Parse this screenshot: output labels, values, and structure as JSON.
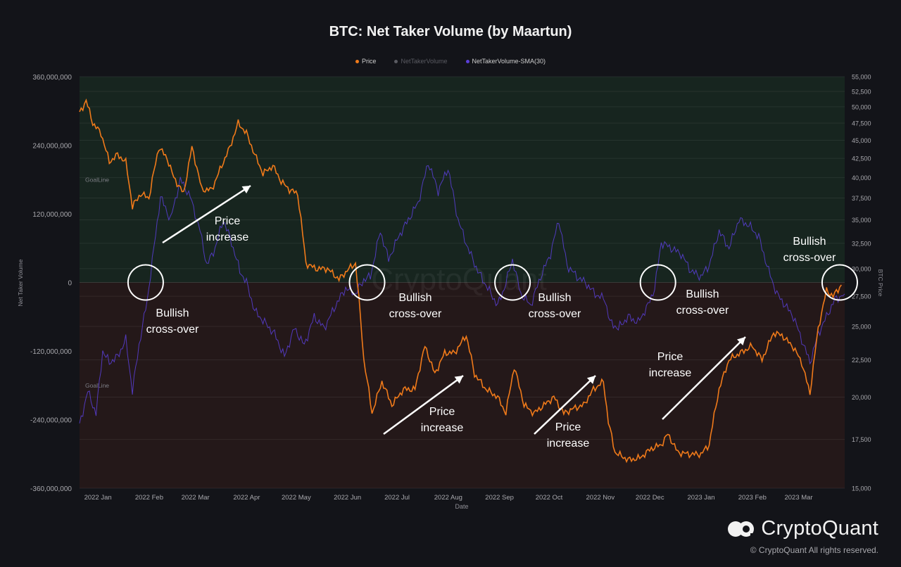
{
  "title": "BTC: Net Taker Volume (by Maartun)",
  "legend": [
    {
      "name": "Price",
      "color": "#f07a1a",
      "muted": false
    },
    {
      "name": "NetTakerVolume",
      "color": "#5a5b62",
      "muted": true
    },
    {
      "name": "NetTakerVolume-SMA(30)",
      "color": "#5b3fd9",
      "muted": false
    }
  ],
  "colors": {
    "background": "#131419",
    "positive_zone": "#17251f",
    "negative_zone": "#241819",
    "price": "#f07a1a",
    "sma": "#5b3fd9",
    "annotation": "#ffffff"
  },
  "logo_text": "CryptoQuant",
  "copyright": "© CryptoQuant All rights reserved.",
  "watermark": "CryptoQuant",
  "chart_data": {
    "type": "line",
    "x_label": "Date",
    "y_left_label": "Net Taker Volume",
    "y_right_label": "BTC Price",
    "x_ticks": [
      "2022 Jan",
      "2022 Feb",
      "2022 Mar",
      "2022 Apr",
      "2022 May",
      "2022 Jun",
      "2022 Jul",
      "2022 Aug",
      "2022 Sep",
      "2022 Oct",
      "2022 Nov",
      "2022 Dec",
      "2023 Jan",
      "2023 Feb",
      "2023 Mar"
    ],
    "x_tick_dates": [
      "2022-01-01",
      "2022-02-01",
      "2022-03-01",
      "2022-04-01",
      "2022-05-01",
      "2022-06-01",
      "2022-07-01",
      "2022-08-01",
      "2022-09-01",
      "2022-10-01",
      "2022-11-01",
      "2022-12-01",
      "2023-01-01",
      "2023-02-01",
      "2023-03-01"
    ],
    "x_range": [
      "2021-12-23",
      "2023-03-31"
    ],
    "y_left_ticks": [
      "360,000,000",
      "240,000,000",
      "120,000,000",
      "0",
      "-120,000,000",
      "-240,000,000",
      "-360,000,000"
    ],
    "y_left_range": [
      -360000000,
      360000000
    ],
    "y_right_ticks": [
      "55,000",
      "52,500",
      "50,000",
      "47,500",
      "45,000",
      "42,500",
      "40,000",
      "37,500",
      "35,000",
      "32,500",
      "30,000",
      "27,500",
      "25,000",
      "22,500",
      "20,000",
      "17,500",
      "15,000"
    ],
    "y_right_scale": "log",
    "y_right_range": [
      15000,
      55000
    ],
    "goal_lines": [
      {
        "label": "GoalLine",
        "value": 180000000
      },
      {
        "label": "GoalLine",
        "value": -180000000
      }
    ],
    "series": [
      {
        "name": "Price",
        "axis": "right",
        "color": "#f07a1a",
        "points": [
          [
            "2021-12-23",
            49000
          ],
          [
            "2021-12-27",
            51000
          ],
          [
            "2021-12-31",
            47500
          ],
          [
            "2022-01-05",
            46000
          ],
          [
            "2022-01-10",
            42000
          ],
          [
            "2022-01-15",
            43000
          ],
          [
            "2022-01-20",
            42000
          ],
          [
            "2022-01-24",
            36500
          ],
          [
            "2022-01-29",
            38000
          ],
          [
            "2022-02-03",
            37500
          ],
          [
            "2022-02-09",
            44000
          ],
          [
            "2022-02-14",
            42500
          ],
          [
            "2022-02-18",
            40000
          ],
          [
            "2022-02-24",
            38000
          ],
          [
            "2022-03-01",
            44000
          ],
          [
            "2022-03-07",
            38500
          ],
          [
            "2022-03-13",
            38500
          ],
          [
            "2022-03-18",
            41000
          ],
          [
            "2022-03-24",
            44000
          ],
          [
            "2022-03-29",
            47500
          ],
          [
            "2022-04-03",
            46000
          ],
          [
            "2022-04-08",
            43000
          ],
          [
            "2022-04-13",
            40500
          ],
          [
            "2022-04-19",
            41500
          ],
          [
            "2022-04-24",
            39500
          ],
          [
            "2022-04-29",
            38500
          ],
          [
            "2022-05-04",
            38000
          ],
          [
            "2022-05-09",
            30500
          ],
          [
            "2022-05-15",
            30000
          ],
          [
            "2022-05-22",
            30000
          ],
          [
            "2022-05-29",
            29000
          ],
          [
            "2022-06-04",
            30000
          ],
          [
            "2022-06-08",
            30500
          ],
          [
            "2022-06-13",
            22500
          ],
          [
            "2022-06-18",
            19000
          ],
          [
            "2022-06-24",
            21000
          ],
          [
            "2022-06-30",
            19500
          ],
          [
            "2022-07-07",
            20500
          ],
          [
            "2022-07-14",
            20500
          ],
          [
            "2022-07-20",
            23500
          ],
          [
            "2022-07-26",
            21500
          ],
          [
            "2022-08-01",
            23000
          ],
          [
            "2022-08-07",
            23000
          ],
          [
            "2022-08-14",
            24300
          ],
          [
            "2022-08-19",
            21500
          ],
          [
            "2022-08-26",
            20500
          ],
          [
            "2022-09-02",
            20000
          ],
          [
            "2022-09-07",
            19000
          ],
          [
            "2022-09-12",
            22000
          ],
          [
            "2022-09-18",
            19500
          ],
          [
            "2022-09-24",
            19000
          ],
          [
            "2022-09-30",
            19500
          ],
          [
            "2022-10-06",
            20000
          ],
          [
            "2022-10-12",
            19000
          ],
          [
            "2022-10-18",
            19300
          ],
          [
            "2022-10-24",
            19500
          ],
          [
            "2022-10-30",
            20500
          ],
          [
            "2022-11-05",
            21000
          ],
          [
            "2022-11-08",
            18500
          ],
          [
            "2022-11-12",
            16800
          ],
          [
            "2022-11-20",
            16400
          ],
          [
            "2022-11-27",
            16500
          ],
          [
            "2022-12-04",
            17000
          ],
          [
            "2022-12-10",
            17200
          ],
          [
            "2022-12-14",
            17800
          ],
          [
            "2022-12-20",
            16800
          ],
          [
            "2022-12-27",
            16700
          ],
          [
            "2023-01-03",
            16700
          ],
          [
            "2023-01-08",
            17200
          ],
          [
            "2023-01-14",
            20500
          ],
          [
            "2023-01-20",
            22500
          ],
          [
            "2023-01-27",
            23000
          ],
          [
            "2023-02-03",
            23500
          ],
          [
            "2023-02-09",
            22500
          ],
          [
            "2023-02-16",
            24500
          ],
          [
            "2023-02-21",
            24300
          ],
          [
            "2023-02-28",
            23400
          ],
          [
            "2023-03-05",
            22300
          ],
          [
            "2023-03-10",
            20200
          ],
          [
            "2023-03-15",
            24800
          ],
          [
            "2023-03-20",
            28000
          ],
          [
            "2023-03-24",
            27500
          ],
          [
            "2023-03-29",
            28500
          ]
        ]
      },
      {
        "name": "NetTakerVolume-SMA(30)",
        "axis": "left",
        "color": "#5b3fd9",
        "points": [
          [
            "2021-12-23",
            -250000000
          ],
          [
            "2021-12-28",
            -190000000
          ],
          [
            "2022-01-02",
            -230000000
          ],
          [
            "2022-01-06",
            -120000000
          ],
          [
            "2022-01-10",
            -140000000
          ],
          [
            "2022-01-15",
            -130000000
          ],
          [
            "2022-01-20",
            -100000000
          ],
          [
            "2022-01-24",
            -190000000
          ],
          [
            "2022-01-28",
            -110000000
          ],
          [
            "2022-02-02",
            -30000000
          ],
          [
            "2022-02-06",
            60000000
          ],
          [
            "2022-02-10",
            150000000
          ],
          [
            "2022-02-16",
            110000000
          ],
          [
            "2022-02-22",
            180000000
          ],
          [
            "2022-02-28",
            150000000
          ],
          [
            "2022-03-06",
            90000000
          ],
          [
            "2022-03-10",
            30000000
          ],
          [
            "2022-03-15",
            60000000
          ],
          [
            "2022-03-20",
            110000000
          ],
          [
            "2022-03-25",
            70000000
          ],
          [
            "2022-03-30",
            20000000
          ],
          [
            "2022-04-03",
            0
          ],
          [
            "2022-04-08",
            -50000000
          ],
          [
            "2022-04-14",
            -70000000
          ],
          [
            "2022-04-20",
            -90000000
          ],
          [
            "2022-04-26",
            -130000000
          ],
          [
            "2022-05-02",
            -80000000
          ],
          [
            "2022-05-08",
            -110000000
          ],
          [
            "2022-05-14",
            -60000000
          ],
          [
            "2022-05-20",
            -80000000
          ],
          [
            "2022-05-27",
            -40000000
          ],
          [
            "2022-06-02",
            -10000000
          ],
          [
            "2022-06-08",
            -20000000
          ],
          [
            "2022-06-13",
            5000000
          ],
          [
            "2022-06-17",
            10000000
          ],
          [
            "2022-06-23",
            90000000
          ],
          [
            "2022-06-28",
            40000000
          ],
          [
            "2022-07-04",
            80000000
          ],
          [
            "2022-07-10",
            110000000
          ],
          [
            "2022-07-16",
            140000000
          ],
          [
            "2022-07-22",
            210000000
          ],
          [
            "2022-07-28",
            160000000
          ],
          [
            "2022-08-03",
            200000000
          ],
          [
            "2022-08-09",
            110000000
          ],
          [
            "2022-08-15",
            60000000
          ],
          [
            "2022-08-21",
            20000000
          ],
          [
            "2022-08-27",
            -10000000
          ],
          [
            "2022-09-02",
            -40000000
          ],
          [
            "2022-09-06",
            -10000000
          ],
          [
            "2022-09-11",
            40000000
          ],
          [
            "2022-09-16",
            -20000000
          ],
          [
            "2022-09-22",
            -40000000
          ],
          [
            "2022-09-28",
            10000000
          ],
          [
            "2022-10-04",
            50000000
          ],
          [
            "2022-10-09",
            110000000
          ],
          [
            "2022-10-14",
            30000000
          ],
          [
            "2022-10-20",
            10000000
          ],
          [
            "2022-10-25",
            0
          ],
          [
            "2022-10-31",
            -20000000
          ],
          [
            "2022-11-06",
            -30000000
          ],
          [
            "2022-11-09",
            -70000000
          ],
          [
            "2022-11-14",
            -80000000
          ],
          [
            "2022-11-20",
            -60000000
          ],
          [
            "2022-11-26",
            -70000000
          ],
          [
            "2022-12-02",
            -40000000
          ],
          [
            "2022-12-06",
            -10000000
          ],
          [
            "2022-12-10",
            70000000
          ],
          [
            "2022-12-16",
            60000000
          ],
          [
            "2022-12-22",
            50000000
          ],
          [
            "2022-12-28",
            20000000
          ],
          [
            "2023-01-03",
            10000000
          ],
          [
            "2023-01-08",
            30000000
          ],
          [
            "2023-01-14",
            90000000
          ],
          [
            "2023-01-20",
            60000000
          ],
          [
            "2023-01-26",
            110000000
          ],
          [
            "2023-02-01",
            100000000
          ],
          [
            "2023-02-07",
            80000000
          ],
          [
            "2023-02-13",
            20000000
          ],
          [
            "2023-02-18",
            -20000000
          ],
          [
            "2023-02-23",
            -40000000
          ],
          [
            "2023-02-28",
            -60000000
          ],
          [
            "2023-03-05",
            -100000000
          ],
          [
            "2023-03-10",
            -140000000
          ],
          [
            "2023-03-15",
            -90000000
          ],
          [
            "2023-03-20",
            -60000000
          ],
          [
            "2023-03-25",
            -30000000
          ],
          [
            "2023-03-31",
            -20000000
          ]
        ]
      }
    ],
    "annotations": [
      {
        "type": "circle",
        "date": "2022-02-01",
        "value": 0
      },
      {
        "type": "circle",
        "date": "2022-06-15",
        "value": 0
      },
      {
        "type": "circle",
        "date": "2022-09-11",
        "value": 0
      },
      {
        "type": "circle",
        "date": "2022-12-08",
        "value": 0
      },
      {
        "type": "circle",
        "date": "2023-03-28",
        "value": 0
      },
      {
        "type": "text",
        "lines": [
          "Bullish",
          "cross-over"
        ]
      },
      {
        "type": "text",
        "lines": [
          "Bullish",
          "cross-over"
        ]
      },
      {
        "type": "text",
        "lines": [
          "Bullish",
          "cross-over"
        ]
      },
      {
        "type": "text",
        "lines": [
          "Bullish",
          "cross-over"
        ]
      },
      {
        "type": "text",
        "lines": [
          "Bullish",
          "cross-over"
        ]
      },
      {
        "type": "text",
        "lines": [
          "Price",
          "increase"
        ]
      },
      {
        "type": "text",
        "lines": [
          "Price",
          "increase"
        ]
      },
      {
        "type": "text",
        "lines": [
          "Price",
          "increase"
        ]
      },
      {
        "type": "text",
        "lines": [
          "Price",
          "increase"
        ]
      },
      {
        "type": "arrow"
      },
      {
        "type": "arrow"
      },
      {
        "type": "arrow"
      },
      {
        "type": "arrow"
      }
    ]
  }
}
